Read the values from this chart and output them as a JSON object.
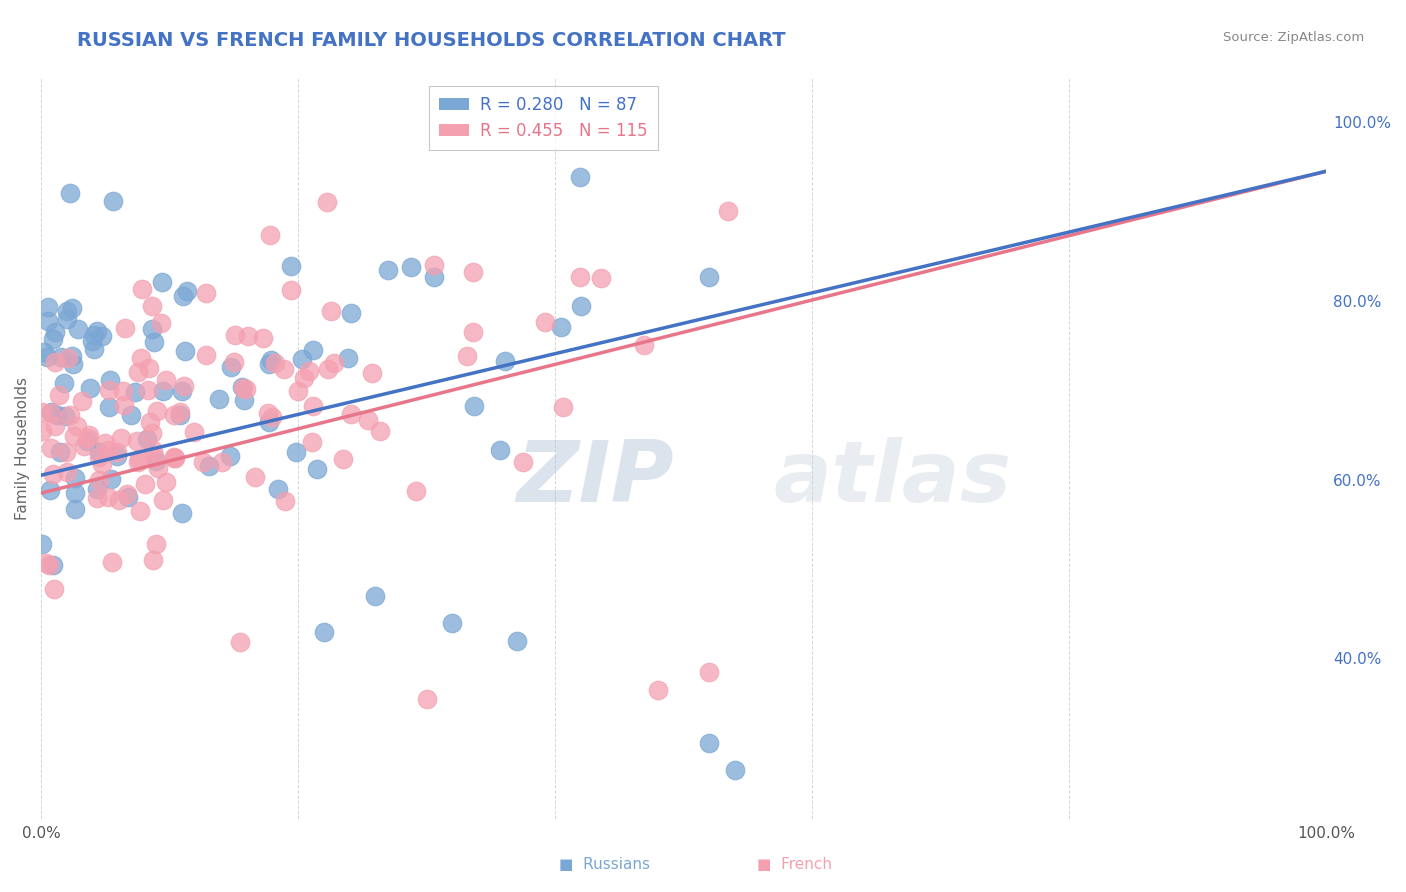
{
  "title": "RUSSIAN VS FRENCH FAMILY HOUSEHOLDS CORRELATION CHART",
  "title_color": "#4472C4",
  "ylabel": "Family Households",
  "source_text": "Source: ZipAtlas.com",
  "russian_R": 0.28,
  "russian_N": 87,
  "french_R": 0.455,
  "french_N": 115,
  "russian_color": "#7BA7D4",
  "french_color": "#F4A0B0",
  "russian_line_color": "#4472C4",
  "french_line_color": "#E8768A",
  "watermark_color": "#C8D8E8",
  "background_color": "#FFFFFF",
  "grid_color": "#CCCCCC",
  "xlim": [
    0.0,
    1.0
  ],
  "ylim": [
    0.22,
    1.05
  ],
  "trendline_x_start": 0.0,
  "trendline_x_end": 1.0,
  "russian_trend_y0": 0.605,
  "russian_trend_y1": 0.945,
  "french_trend_y0": 0.585,
  "french_trend_y1": 0.945
}
